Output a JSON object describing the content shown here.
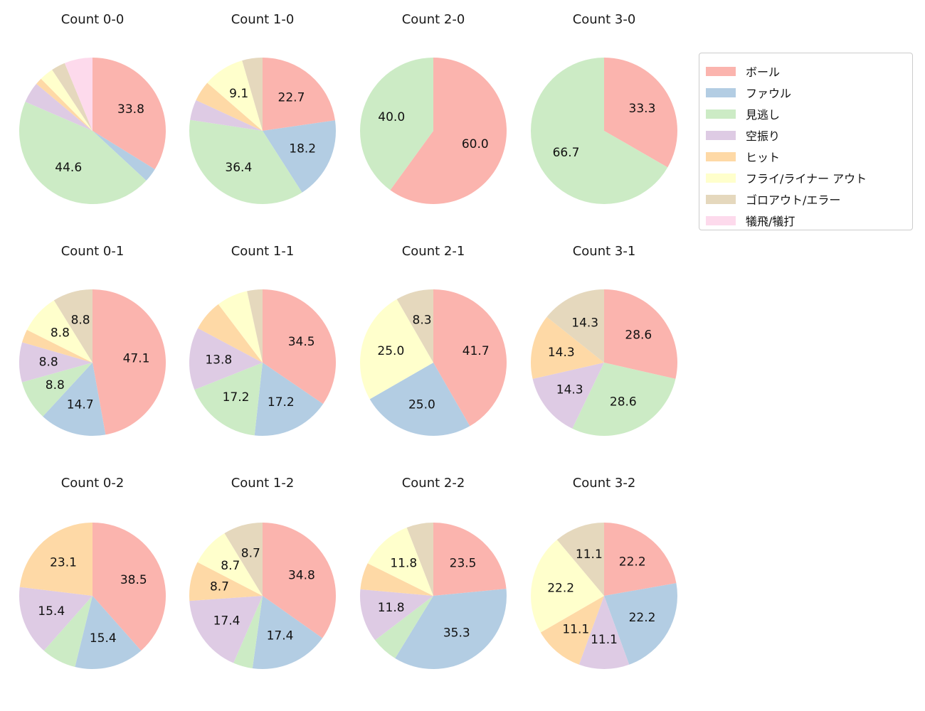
{
  "figure": {
    "background": "#ffffff",
    "title_color": "#1a1a1a",
    "label_color": "#111111"
  },
  "legend": {
    "labels": [
      "ボール",
      "ファウル",
      "見逃し",
      "空振り",
      "ヒット",
      "フライ/ライナー アウト",
      "ゴロアウト/エラー",
      "犠飛/犠打"
    ],
    "colors": [
      "#fbb4ae",
      "#b3cde3",
      "#ccebc5",
      "#decbe4",
      "#fed9a6",
      "#ffffcc",
      "#e5d8bd",
      "#fddaec"
    ],
    "position": "top-right",
    "border_color": "#cccccc"
  },
  "chart_data": {
    "type": "pie",
    "grid": {
      "rows": 3,
      "cols": 4
    },
    "categories": [
      "ボール",
      "ファウル",
      "見逃し",
      "空振り",
      "ヒット",
      "フライ/ライナー アウト",
      "ゴロアウト/エラー",
      "犠飛/犠打"
    ],
    "colors": [
      "#fbb4ae",
      "#b3cde3",
      "#ccebc5",
      "#decbe4",
      "#fed9a6",
      "#ffffcc",
      "#e5d8bd",
      "#fddaec"
    ],
    "start_angle_deg": 0,
    "direction": "clockwise",
    "pct_label_distance": 0.6,
    "pct_label_min": 8.0,
    "charts": [
      {
        "title": "Count 0-0",
        "values": [
          33.8,
          3.1,
          44.6,
          4.6,
          1.5,
          3.1,
          3.1,
          6.2
        ]
      },
      {
        "title": "Count 1-0",
        "values": [
          22.7,
          18.2,
          36.4,
          4.5,
          4.5,
          9.1,
          4.5,
          0
        ]
      },
      {
        "title": "Count 2-0",
        "values": [
          60.0,
          0,
          40.0,
          0,
          0,
          0,
          0,
          0
        ]
      },
      {
        "title": "Count 3-0",
        "values": [
          33.3,
          0,
          66.7,
          0,
          0,
          0,
          0,
          0
        ]
      },
      {
        "title": "Count 0-1",
        "values": [
          47.1,
          14.7,
          8.8,
          8.8,
          2.9,
          8.8,
          8.8,
          0
        ]
      },
      {
        "title": "Count 1-1",
        "values": [
          34.5,
          17.2,
          17.2,
          13.8,
          6.9,
          6.9,
          3.4,
          0
        ]
      },
      {
        "title": "Count 2-1",
        "values": [
          41.7,
          25.0,
          0,
          0,
          0,
          25.0,
          8.3,
          0
        ]
      },
      {
        "title": "Count 3-1",
        "values": [
          28.6,
          0,
          28.6,
          14.3,
          14.3,
          0,
          14.3,
          0
        ]
      },
      {
        "title": "Count 0-2",
        "values": [
          38.5,
          15.4,
          7.7,
          15.4,
          23.1,
          0,
          0,
          0
        ]
      },
      {
        "title": "Count 1-2",
        "values": [
          34.8,
          17.4,
          4.3,
          17.4,
          8.7,
          8.7,
          8.7,
          0
        ]
      },
      {
        "title": "Count 2-2",
        "values": [
          23.5,
          35.3,
          5.9,
          11.8,
          5.9,
          11.8,
          5.9,
          0
        ]
      },
      {
        "title": "Count 3-2",
        "values": [
          22.2,
          22.2,
          0,
          11.1,
          11.1,
          22.2,
          11.1,
          0
        ]
      }
    ]
  }
}
